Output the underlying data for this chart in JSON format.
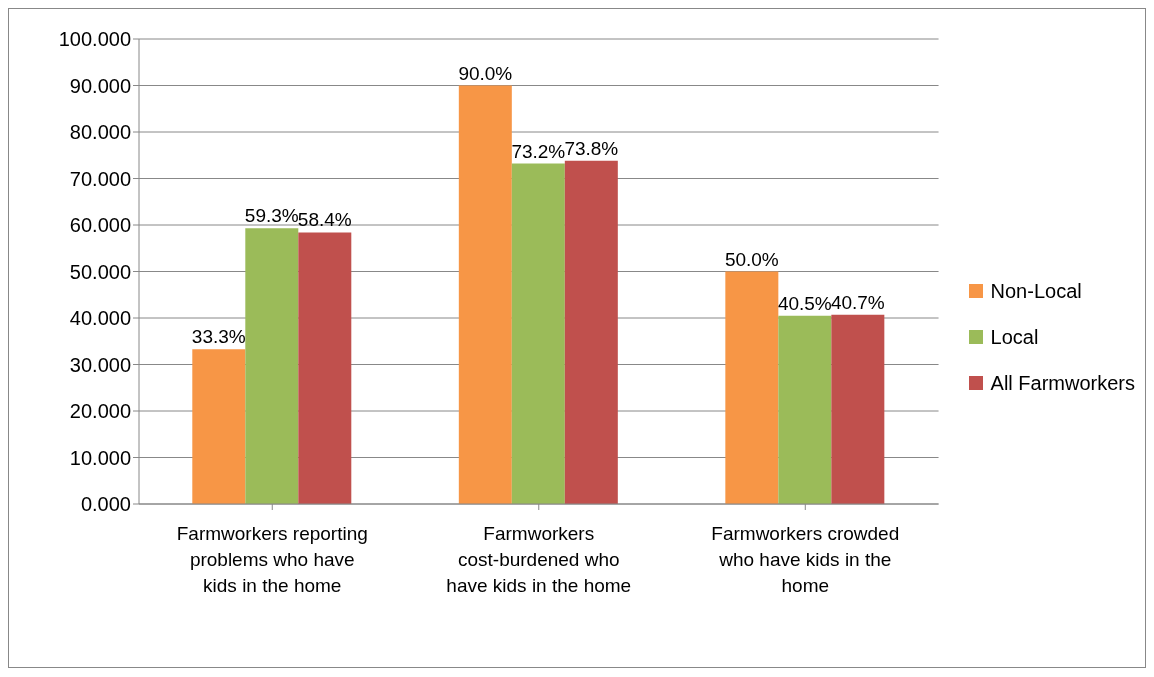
{
  "chart_data": {
    "type": "bar",
    "categories": [
      "Farmworkers reporting problems who have kids in the home",
      "Farmworkers cost-burdened who have kids in the home",
      "Farmworkers crowded who have kids in the home"
    ],
    "series": [
      {
        "name": "Non-Local",
        "color": "#f79646",
        "values": [
          33.3,
          90.0,
          50.0
        ],
        "value_labels": [
          "33.3%",
          "90.0%",
          "50.0%"
        ]
      },
      {
        "name": "Local",
        "color": "#9bbb59",
        "values": [
          59.3,
          73.2,
          40.5
        ],
        "value_labels": [
          "59.3%",
          "73.2%",
          "40.5%"
        ]
      },
      {
        "name": "All Farmworkers",
        "color": "#c0504d",
        "values": [
          58.4,
          73.8,
          40.7
        ],
        "value_labels": [
          "58.4%",
          "73.8%",
          "40.7%"
        ]
      }
    ],
    "ylim": [
      0,
      100
    ],
    "yticks": [
      {
        "value": 0,
        "label": "0.000"
      },
      {
        "value": 10,
        "label": "10.000"
      },
      {
        "value": 20,
        "label": "20.000"
      },
      {
        "value": 30,
        "label": "30.000"
      },
      {
        "value": 40,
        "label": "40.000"
      },
      {
        "value": 50,
        "label": "50.000"
      },
      {
        "value": 60,
        "label": "60.000"
      },
      {
        "value": 70,
        "label": "70.000"
      },
      {
        "value": 80,
        "label": "80.000"
      },
      {
        "value": 90,
        "label": "90.000"
      },
      {
        "value": 100,
        "label": "100.000"
      }
    ],
    "grid": "y",
    "legend": "right"
  }
}
